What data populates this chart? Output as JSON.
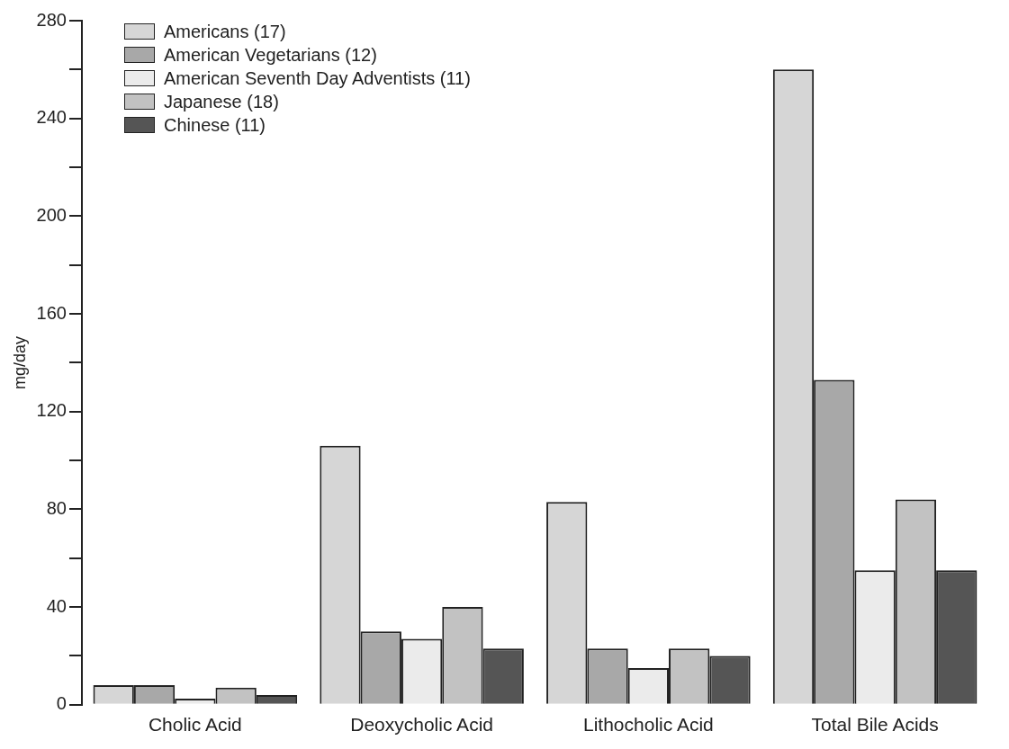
{
  "chart_data": {
    "type": "bar",
    "ylabel": "mg/day",
    "categories": [
      "Cholic Acid",
      "Deoxycholic Acid",
      "Lithocholic Acid",
      "Total Bile Acids"
    ],
    "series": [
      {
        "name": "Americans (17)",
        "color": "#d6d6d6",
        "values": [
          8,
          106,
          83,
          260
        ]
      },
      {
        "name": "American Vegetarians (12)",
        "color": "#a8a8a8",
        "values": [
          8,
          30,
          23,
          133
        ]
      },
      {
        "name": "American Seventh Day Adventists (11)",
        "color": "#ebebeb",
        "values": [
          2.5,
          27,
          15,
          55
        ]
      },
      {
        "name": "Japanese (18)",
        "color": "#c2c2c2",
        "values": [
          7,
          40,
          23,
          84
        ]
      },
      {
        "name": "Chinese (11)",
        "color": "#555555",
        "values": [
          4,
          23,
          20,
          55
        ]
      }
    ],
    "ylim": [
      0,
      280
    ],
    "yticks": [
      0,
      {
        "value": 20,
        "label": null
      },
      40,
      {
        "value": 60,
        "label": null
      },
      80,
      {
        "value": 100,
        "label": null
      },
      120,
      {
        "value": 140,
        "label": null
      },
      160,
      {
        "value": 180,
        "label": null
      },
      200,
      {
        "value": 220,
        "label": null
      },
      240,
      {
        "value": 260,
        "label": null
      },
      280
    ],
    "grid": false,
    "legend": "top left"
  }
}
